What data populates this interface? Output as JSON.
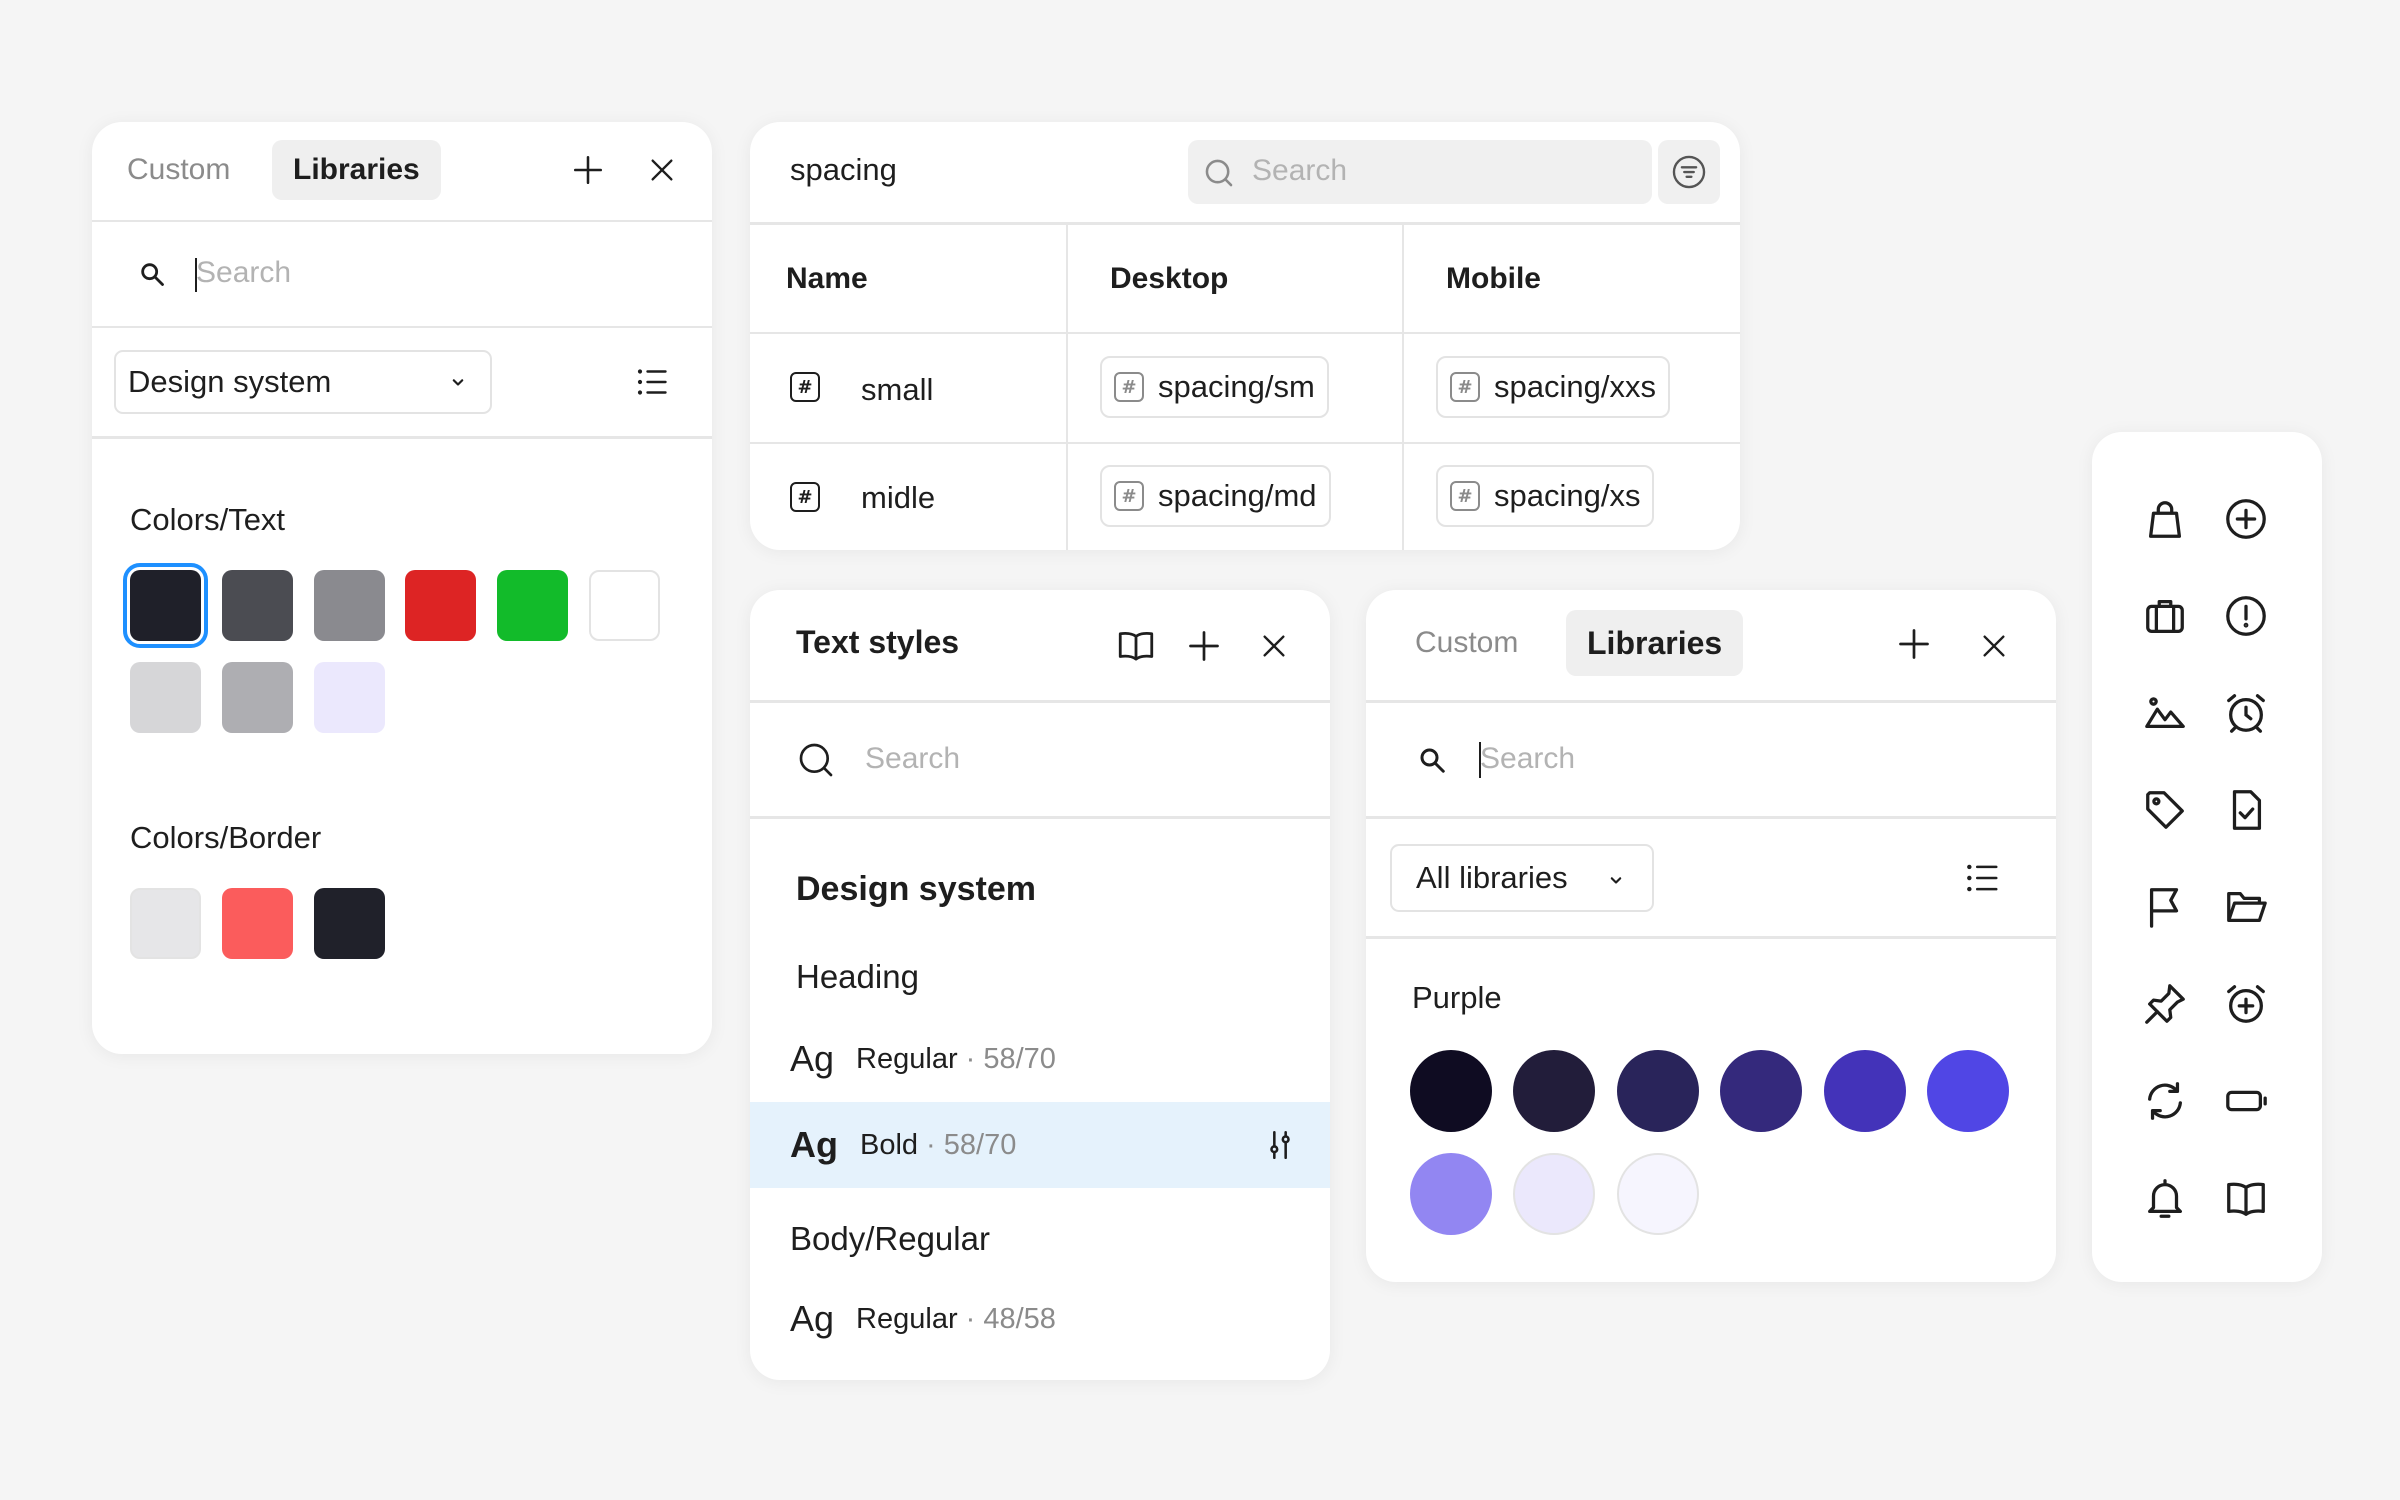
{
  "colors_panel": {
    "tabs": [
      "Custom",
      "Libraries"
    ],
    "search_placeholder": "Search",
    "dropdown_label": "Design system",
    "sections": [
      {
        "title": "Colors/Text",
        "swatches": [
          "#1f2029",
          "#4b4c52",
          "#8a8a8f",
          "#dd2424",
          "#12bb2a",
          "#ffffff",
          "#d6d6d8",
          "#aeaeb2",
          "#ebe8fd"
        ]
      },
      {
        "title": "Colors/Border",
        "swatches": [
          "#e6e6e8",
          "#fb5c5c",
          "#20212a"
        ]
      }
    ],
    "selected_swatch": "#1f2029"
  },
  "spacing_panel": {
    "title": "spacing",
    "search_placeholder": "Search",
    "columns": [
      "Name",
      "Desktop",
      "Mobile"
    ],
    "rows": [
      {
        "name": "small",
        "desktop": "spacing/sm",
        "mobile": "spacing/xxs"
      },
      {
        "name": "midle",
        "desktop": "spacing/md",
        "mobile": "spacing/xs"
      }
    ],
    "number_glyph": "#"
  },
  "text_styles_panel": {
    "title": "Text styles",
    "search_placeholder": "Search",
    "group": "Design system",
    "subgroups": [
      {
        "title": "Heading",
        "styles": [
          {
            "sample": "Ag",
            "name": "Regular",
            "size": "· 58/70"
          },
          {
            "sample": "Ag",
            "name": "Bold",
            "size": "· 58/70",
            "highlighted": true
          }
        ]
      },
      {
        "title": "Body/Regular",
        "styles": [
          {
            "sample": "Ag",
            "name": "Regular",
            "size": "· 48/58"
          }
        ]
      }
    ]
  },
  "libraries_panel": {
    "tabs": [
      "Custom",
      "Libraries"
    ],
    "search_placeholder": "Search",
    "dropdown_label": "All libraries",
    "section_title": "Purple",
    "swatches": [
      "#0f0c22",
      "#221d3a",
      "#29245a",
      "#34297c",
      "#4333b9",
      "#5046e5",
      "#9286f2",
      "#ebe8fc",
      "#f6f5fe"
    ]
  },
  "icon_panel": {
    "icons": [
      "bag-icon",
      "add-circle-icon",
      "briefcase-icon",
      "alert-circle-icon",
      "landscape-icon",
      "alarm-clock-icon",
      "tag-icon",
      "file-check-icon",
      "flag-icon",
      "folder-open-icon",
      "pin-icon",
      "alarm-plus-icon",
      "refresh-icon",
      "battery-icon",
      "bell-icon",
      "book-icon"
    ]
  }
}
